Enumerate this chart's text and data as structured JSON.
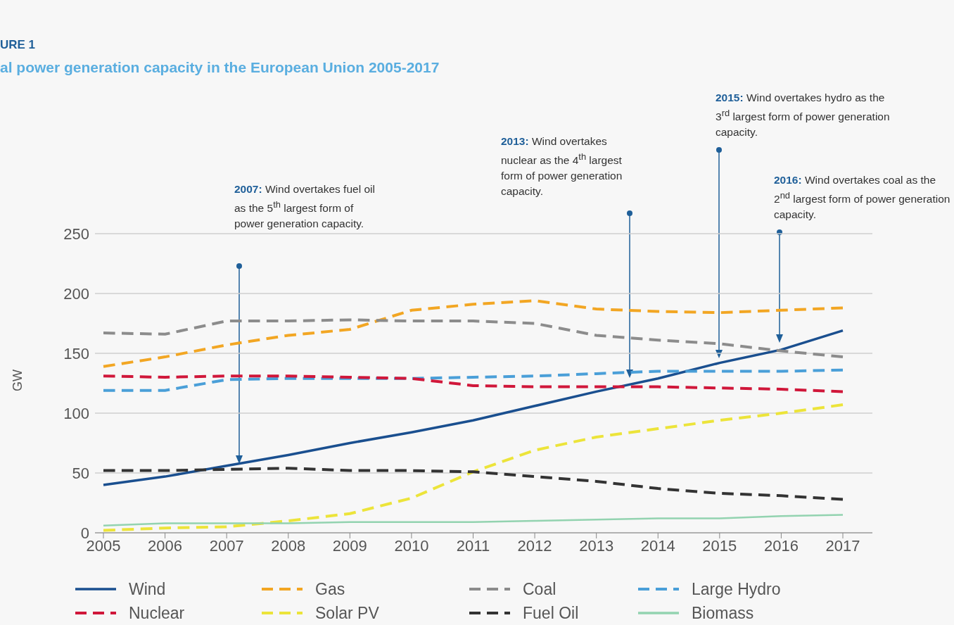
{
  "chart_data": {
    "type": "line",
    "title": "URE 1",
    "subtitle": "al power generation capacity in the European Union 2005-2017",
    "ylabel": "GW",
    "categories": [
      "2005",
      "2006",
      "2007",
      "2008",
      "2009",
      "2010",
      "2011",
      "2012",
      "2013",
      "2014",
      "2015",
      "2016",
      "2017"
    ],
    "series": [
      {
        "name": "Wind",
        "color": "#1a4f8f",
        "line_style": "solid",
        "values": [
          40,
          47,
          56,
          65,
          75,
          84,
          94,
          106,
          118,
          129,
          142,
          153,
          169
        ]
      },
      {
        "name": "Gas",
        "color": "#f2a623",
        "line_style": "dashed",
        "values": [
          139,
          147,
          157,
          165,
          170,
          186,
          191,
          194,
          187,
          185,
          184,
          186,
          188
        ]
      },
      {
        "name": "Coal",
        "color": "#8c8c8c",
        "line_style": "dashed",
        "values": [
          167,
          166,
          177,
          177,
          178,
          177,
          177,
          175,
          165,
          161,
          158,
          152,
          147
        ]
      },
      {
        "name": "Large Hydro",
        "color": "#4a9fd8",
        "line_style": "dashed",
        "values": [
          119,
          119,
          128,
          129,
          129,
          129,
          130,
          131,
          133,
          135,
          135,
          135,
          136
        ]
      },
      {
        "name": "Nuclear",
        "color": "#d0173a",
        "line_style": "dashed",
        "values": [
          131,
          130,
          131,
          131,
          130,
          129,
          123,
          122,
          122,
          122,
          121,
          120,
          118
        ]
      },
      {
        "name": "Solar PV",
        "color": "#ece43a",
        "line_style": "dashed",
        "values": [
          2,
          4,
          5,
          10,
          16,
          29,
          51,
          69,
          80,
          87,
          94,
          100,
          107
        ]
      },
      {
        "name": "Fuel Oil",
        "color": "#333333",
        "line_style": "dashed",
        "values": [
          52,
          52,
          53,
          54,
          52,
          52,
          51,
          47,
          43,
          37,
          33,
          31,
          28
        ]
      },
      {
        "name": "Biomass",
        "color": "#93d3b0",
        "line_style": "solid",
        "values": [
          6,
          8,
          8,
          8,
          9,
          9,
          9,
          10,
          11,
          12,
          12,
          14,
          15
        ]
      }
    ],
    "ylim": [
      0,
      250
    ],
    "yticks": [
      0,
      50,
      100,
      150,
      200,
      250
    ],
    "grid": "y",
    "legend": "bottom",
    "annotations": [
      "2007: Wind overtakes fuel oil as the 5$^{th}$ largest form of power generation capacity.",
      "2013: Wind overtakes nuclear as the 4$^{th}$ largest form of power generation capacity.",
      "2015: Wind overtakes hydro as the 3$^{rd}$ largest form of power generation capacity.",
      "2016: Wind overtakes coal as the 2$^{nd}$ largest form of power generation capacity."
    ]
  }
}
